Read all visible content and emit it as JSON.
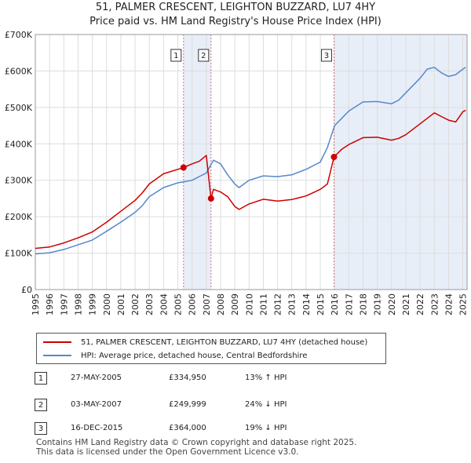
{
  "chart_data": {
    "type": "line",
    "title": "51, PALMER CRESCENT, LEIGHTON BUZZARD, LU7 4HY",
    "subtitle": "Price paid vs. HM Land Registry's House Price Index (HPI)",
    "xlim": [
      1995,
      2025.3
    ],
    "ylim": [
      0,
      700000
    ],
    "y_ticks": [
      0,
      100000,
      200000,
      300000,
      400000,
      500000,
      600000,
      700000
    ],
    "y_tick_labels": [
      "£0",
      "£100K",
      "£200K",
      "£300K",
      "£400K",
      "£500K",
      "£600K",
      "£700K"
    ],
    "x_ticks": [
      1995,
      1996,
      1997,
      1998,
      1999,
      2000,
      2001,
      2002,
      2003,
      2004,
      2005,
      2006,
      2007,
      2008,
      2009,
      2010,
      2011,
      2012,
      2013,
      2014,
      2015,
      2016,
      2017,
      2018,
      2019,
      2020,
      2021,
      2022,
      2023,
      2024,
      2025
    ],
    "x_tick_labels": [
      "1995",
      "1996",
      "1997",
      "1998",
      "1999",
      "2000",
      "2001",
      "2002",
      "2003",
      "2004",
      "2005",
      "2006",
      "2007",
      "2008",
      "2009",
      "2010",
      "2011",
      "2012",
      "2013",
      "2014",
      "2015",
      "2016",
      "2017",
      "2018",
      "2019",
      "2020",
      "2021",
      "2022",
      "2023",
      "2024",
      "2025"
    ],
    "grid": true,
    "series": [
      {
        "name": "51, PALMER CRESCENT, LEIGHTON BUZZARD, LU7 4HY (detached house)",
        "color": "#cc0000",
        "x": [
          1995.0,
          1996.0,
          1997.0,
          1998.0,
          1999.0,
          2000.0,
          2001.0,
          2002.0,
          2002.5,
          2003.0,
          2004.0,
          2005.0,
          2005.4,
          2006.0,
          2006.5,
          2007.0,
          2007.33,
          2007.5,
          2008.0,
          2008.5,
          2009.0,
          2009.3,
          2010.0,
          2011.0,
          2012.0,
          2013.0,
          2014.0,
          2015.0,
          2015.5,
          2015.96,
          2016.5,
          2017.0,
          2018.0,
          2019.0,
          2020.0,
          2020.5,
          2021.0,
          2022.0,
          2022.5,
          2023.0,
          2023.5,
          2024.0,
          2024.5,
          2025.0,
          2025.2
        ],
        "y": [
          113000,
          117000,
          128000,
          142000,
          158000,
          185000,
          215000,
          245000,
          265000,
          290000,
          318000,
          330000,
          334950,
          345000,
          352000,
          368000,
          249999,
          275000,
          268000,
          255000,
          228000,
          220000,
          235000,
          248000,
          243000,
          247000,
          257000,
          275000,
          290000,
          364000,
          385000,
          398000,
          417000,
          418000,
          410000,
          415000,
          425000,
          455000,
          470000,
          485000,
          475000,
          465000,
          460000,
          488000,
          492000
        ]
      },
      {
        "name": "HPI: Average price, detached house, Central Bedfordshire",
        "color": "#5588cc",
        "x": [
          1995.0,
          1996.0,
          1997.0,
          1998.0,
          1999.0,
          2000.0,
          2001.0,
          2002.0,
          2002.5,
          2003.0,
          2004.0,
          2005.0,
          2006.0,
          2007.0,
          2007.5,
          2008.0,
          2008.5,
          2009.0,
          2009.3,
          2010.0,
          2011.0,
          2012.0,
          2013.0,
          2014.0,
          2015.0,
          2015.5,
          2016.0,
          2016.5,
          2017.0,
          2018.0,
          2019.0,
          2020.0,
          2020.5,
          2021.0,
          2022.0,
          2022.5,
          2023.0,
          2023.5,
          2024.0,
          2024.5,
          2025.0,
          2025.2
        ],
        "y": [
          98000,
          101000,
          110000,
          123000,
          136000,
          160000,
          185000,
          212000,
          230000,
          255000,
          280000,
          293000,
          300000,
          320000,
          355000,
          345000,
          315000,
          290000,
          280000,
          300000,
          312000,
          310000,
          315000,
          330000,
          350000,
          390000,
          450000,
          470000,
          490000,
          515000,
          516000,
          510000,
          520000,
          540000,
          580000,
          605000,
          610000,
          595000,
          585000,
          590000,
          605000,
          610000
        ]
      }
    ],
    "sales": [
      {
        "label": "1",
        "date": "27-MAY-2005",
        "x": 2005.4,
        "price": "£334,950",
        "value": 334950,
        "hpi": "13% ↑ HPI"
      },
      {
        "label": "2",
        "date": "03-MAY-2007",
        "x": 2007.33,
        "price": "£249,999",
        "value": 249999,
        "hpi": "24% ↓ HPI"
      },
      {
        "label": "3",
        "date": "16-DEC-2015",
        "x": 2015.96,
        "price": "£364,000",
        "value": 364000,
        "hpi": "19% ↓ HPI"
      }
    ],
    "shaded_periods": [
      [
        2005.4,
        2007.33
      ],
      [
        2015.96,
        2025.3
      ]
    ],
    "legend_position": "below"
  },
  "colors": {
    "property": "#cc0000",
    "hpi": "#5588cc",
    "shade": "#e8eef8",
    "grid": "#dddddd",
    "marker_line": "#e07070"
  },
  "footer": {
    "line1": "Contains HM Land Registry data © Crown copyright and database right 2025.",
    "line2": "This data is licensed under the Open Government Licence v3.0."
  }
}
